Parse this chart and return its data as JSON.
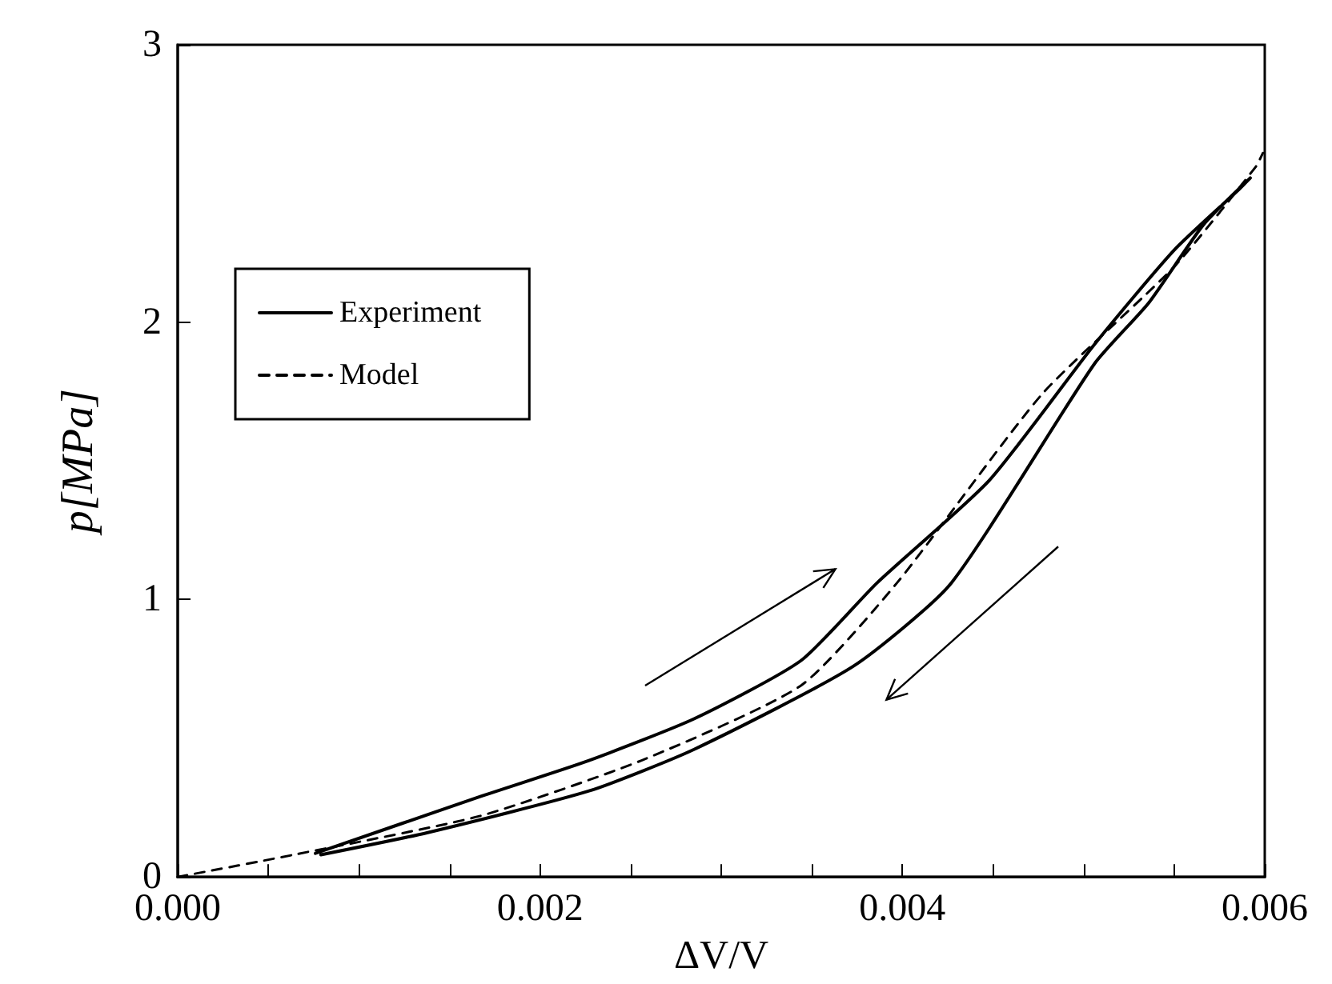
{
  "chart_data": {
    "type": "line",
    "xlabel": "ΔV/V",
    "ylabel": "p[MPa]",
    "xlim": [
      0,
      0.006
    ],
    "xticks": [
      {
        "value": 0,
        "label": "0.000"
      },
      {
        "value": 0.002,
        "label": "0.002"
      },
      {
        "value": 0.004,
        "label": "0.004"
      },
      {
        "value": 0.006,
        "label": "0.006"
      }
    ],
    "ylim": [
      0,
      3
    ],
    "yticks": [
      0,
      1,
      2,
      3
    ],
    "grid": false,
    "legend": "top left",
    "marker": "none",
    "series": [
      {
        "name": "Experiment",
        "color": "#000000",
        "line_style": "solid",
        "x": [
          0.00076,
          0.00167,
          0.00227,
          0.00285,
          0.00344,
          0.00386,
          0.00448,
          0.00506,
          0.0055,
          0.00586,
          0.00592,
          0.00566,
          0.00536,
          0.00506,
          0.00427,
          0.00373,
          0.00285,
          0.00227,
          0.00138,
          0.00079
        ],
        "values": [
          0.085,
          0.29,
          0.42,
          0.57,
          0.78,
          1.06,
          1.43,
          1.92,
          2.26,
          2.48,
          2.52,
          2.35,
          2.07,
          1.85,
          1.06,
          0.76,
          0.46,
          0.31,
          0.16,
          0.08
        ]
      },
      {
        "name": "Model",
        "color": "#000000",
        "line_style": "dashed",
        "x": [
          0,
          0.00064,
          0.00167,
          0.00256,
          0.00344,
          0.00397,
          0.00477,
          0.0055,
          0.00595,
          0.00599
        ],
        "values": [
          0,
          0.08,
          0.22,
          0.42,
          0.69,
          1.06,
          1.74,
          2.2,
          2.56,
          2.61
        ]
      }
    ]
  }
}
